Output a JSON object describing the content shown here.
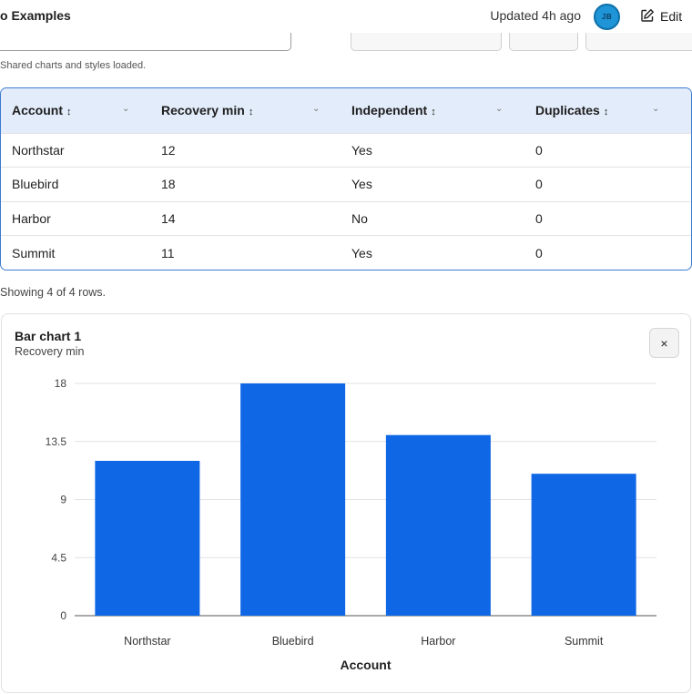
{
  "header": {
    "title": "o Examples",
    "updated": "Updated 4h ago",
    "avatar_initials": "JB",
    "edit_label": "Edit"
  },
  "status_text": "Shared charts and styles loaded.",
  "table": {
    "columns": [
      "Account",
      "Recovery min",
      "Independent",
      "Duplicates"
    ],
    "rows": [
      [
        "Northstar",
        "12",
        "Yes",
        "0"
      ],
      [
        "Bluebird",
        "18",
        "Yes",
        "0"
      ],
      [
        "Harbor",
        "14",
        "No",
        "0"
      ],
      [
        "Summit",
        "11",
        "Yes",
        "0"
      ]
    ],
    "row_count_text": "Showing 4 of 4 rows."
  },
  "chart_card": {
    "title": "Bar chart 1",
    "subtitle": "Recovery min",
    "close_label": "×"
  },
  "colors": {
    "bar": "#0f67e6",
    "header_bg": "#e3ecfa",
    "accent_border": "#3d7bd0"
  },
  "chart_data": {
    "type": "bar",
    "categories": [
      "Northstar",
      "Bluebird",
      "Harbor",
      "Summit"
    ],
    "values": [
      12,
      18,
      14,
      11
    ],
    "title": "Bar chart 1",
    "subtitle": "Recovery min",
    "xlabel": "Account",
    "ylabel": "",
    "ylim": [
      0,
      18
    ],
    "yticks": [
      "0",
      "4.5",
      "9",
      "13.5",
      "18"
    ],
    "grid": true
  }
}
